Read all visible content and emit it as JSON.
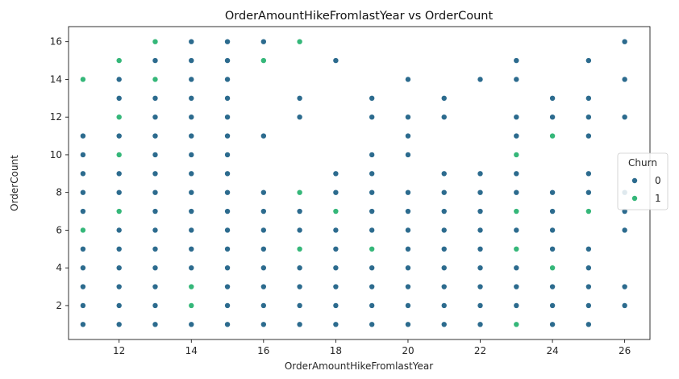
{
  "chart_data": {
    "type": "scatter",
    "title": "OrderAmountHikeFromlastYear vs OrderCount",
    "xlabel": "OrderAmountHikeFromlastYear",
    "ylabel": "OrderCount",
    "xlim": [
      10.6,
      26.7
    ],
    "ylim": [
      0.2,
      16.8
    ],
    "xticks": [
      12,
      14,
      16,
      18,
      20,
      22,
      24,
      26
    ],
    "yticks": [
      2,
      4,
      6,
      8,
      10,
      12,
      14,
      16
    ],
    "grid": false,
    "legend": {
      "title": "Churn",
      "placement": "center-right"
    },
    "series": [
      {
        "name": "0",
        "color": "#2c6b8e",
        "points": [
          [
            11,
            1
          ],
          [
            11,
            2
          ],
          [
            11,
            3
          ],
          [
            11,
            4
          ],
          [
            11,
            5
          ],
          [
            11,
            7
          ],
          [
            11,
            8
          ],
          [
            11,
            9
          ],
          [
            11,
            10
          ],
          [
            11,
            11
          ],
          [
            12,
            1
          ],
          [
            12,
            2
          ],
          [
            12,
            3
          ],
          [
            12,
            4
          ],
          [
            12,
            5
          ],
          [
            12,
            6
          ],
          [
            12,
            8
          ],
          [
            12,
            9
          ],
          [
            12,
            11
          ],
          [
            12,
            13
          ],
          [
            12,
            14
          ],
          [
            13,
            1
          ],
          [
            13,
            2
          ],
          [
            13,
            3
          ],
          [
            13,
            4
          ],
          [
            13,
            5
          ],
          [
            13,
            6
          ],
          [
            13,
            7
          ],
          [
            13,
            8
          ],
          [
            13,
            9
          ],
          [
            13,
            10
          ],
          [
            13,
            11
          ],
          [
            13,
            12
          ],
          [
            13,
            13
          ],
          [
            13,
            15
          ],
          [
            14,
            1
          ],
          [
            14,
            4
          ],
          [
            14,
            5
          ],
          [
            14,
            6
          ],
          [
            14,
            7
          ],
          [
            14,
            8
          ],
          [
            14,
            9
          ],
          [
            14,
            10
          ],
          [
            14,
            11
          ],
          [
            14,
            12
          ],
          [
            14,
            13
          ],
          [
            14,
            14
          ],
          [
            14,
            15
          ],
          [
            14,
            16
          ],
          [
            15,
            1
          ],
          [
            15,
            2
          ],
          [
            15,
            3
          ],
          [
            15,
            4
          ],
          [
            15,
            5
          ],
          [
            15,
            6
          ],
          [
            15,
            7
          ],
          [
            15,
            8
          ],
          [
            15,
            9
          ],
          [
            15,
            10
          ],
          [
            15,
            11
          ],
          [
            15,
            12
          ],
          [
            15,
            13
          ],
          [
            15,
            14
          ],
          [
            15,
            15
          ],
          [
            15,
            16
          ],
          [
            16,
            1
          ],
          [
            16,
            2
          ],
          [
            16,
            3
          ],
          [
            16,
            4
          ],
          [
            16,
            5
          ],
          [
            16,
            6
          ],
          [
            16,
            7
          ],
          [
            16,
            8
          ],
          [
            16,
            11
          ],
          [
            16,
            16
          ],
          [
            17,
            1
          ],
          [
            17,
            2
          ],
          [
            17,
            3
          ],
          [
            17,
            4
          ],
          [
            17,
            6
          ],
          [
            17,
            7
          ],
          [
            17,
            12
          ],
          [
            17,
            13
          ],
          [
            18,
            1
          ],
          [
            18,
            2
          ],
          [
            18,
            3
          ],
          [
            18,
            4
          ],
          [
            18,
            5
          ],
          [
            18,
            6
          ],
          [
            18,
            8
          ],
          [
            18,
            9
          ],
          [
            18,
            15
          ],
          [
            19,
            1
          ],
          [
            19,
            2
          ],
          [
            19,
            3
          ],
          [
            19,
            4
          ],
          [
            19,
            6
          ],
          [
            19,
            7
          ],
          [
            19,
            8
          ],
          [
            19,
            9
          ],
          [
            19,
            10
          ],
          [
            19,
            12
          ],
          [
            19,
            13
          ],
          [
            20,
            1
          ],
          [
            20,
            2
          ],
          [
            20,
            3
          ],
          [
            20,
            4
          ],
          [
            20,
            5
          ],
          [
            20,
            6
          ],
          [
            20,
            7
          ],
          [
            20,
            8
          ],
          [
            20,
            10
          ],
          [
            20,
            11
          ],
          [
            20,
            12
          ],
          [
            20,
            14
          ],
          [
            21,
            1
          ],
          [
            21,
            2
          ],
          [
            21,
            3
          ],
          [
            21,
            4
          ],
          [
            21,
            5
          ],
          [
            21,
            6
          ],
          [
            21,
            7
          ],
          [
            21,
            8
          ],
          [
            21,
            9
          ],
          [
            21,
            12
          ],
          [
            21,
            13
          ],
          [
            22,
            1
          ],
          [
            22,
            2
          ],
          [
            22,
            3
          ],
          [
            22,
            4
          ],
          [
            22,
            5
          ],
          [
            22,
            6
          ],
          [
            22,
            7
          ],
          [
            22,
            8
          ],
          [
            22,
            9
          ],
          [
            22,
            14
          ],
          [
            23,
            2
          ],
          [
            23,
            3
          ],
          [
            23,
            4
          ],
          [
            23,
            6
          ],
          [
            23,
            8
          ],
          [
            23,
            9
          ],
          [
            23,
            11
          ],
          [
            23,
            12
          ],
          [
            23,
            14
          ],
          [
            23,
            15
          ],
          [
            24,
            1
          ],
          [
            24,
            2
          ],
          [
            24,
            3
          ],
          [
            24,
            5
          ],
          [
            24,
            6
          ],
          [
            24,
            7
          ],
          [
            24,
            8
          ],
          [
            24,
            12
          ],
          [
            24,
            13
          ],
          [
            25,
            1
          ],
          [
            25,
            2
          ],
          [
            25,
            3
          ],
          [
            25,
            4
          ],
          [
            25,
            5
          ],
          [
            25,
            8
          ],
          [
            25,
            9
          ],
          [
            25,
            11
          ],
          [
            25,
            12
          ],
          [
            25,
            13
          ],
          [
            25,
            15
          ],
          [
            26,
            2
          ],
          [
            26,
            3
          ],
          [
            26,
            6
          ],
          [
            26,
            7
          ],
          [
            26,
            8
          ],
          [
            26,
            12
          ],
          [
            26,
            14
          ],
          [
            26,
            16
          ]
        ]
      },
      {
        "name": "1",
        "color": "#35b779",
        "points": [
          [
            11,
            6
          ],
          [
            11,
            14
          ],
          [
            12,
            7
          ],
          [
            12,
            10
          ],
          [
            12,
            12
          ],
          [
            12,
            15
          ],
          [
            13,
            14
          ],
          [
            13,
            16
          ],
          [
            14,
            2
          ],
          [
            14,
            3
          ],
          [
            16,
            15
          ],
          [
            17,
            5
          ],
          [
            17,
            8
          ],
          [
            17,
            16
          ],
          [
            18,
            7
          ],
          [
            19,
            5
          ],
          [
            23,
            1
          ],
          [
            23,
            5
          ],
          [
            23,
            7
          ],
          [
            23,
            10
          ],
          [
            24,
            4
          ],
          [
            24,
            11
          ],
          [
            25,
            7
          ]
        ]
      }
    ]
  }
}
